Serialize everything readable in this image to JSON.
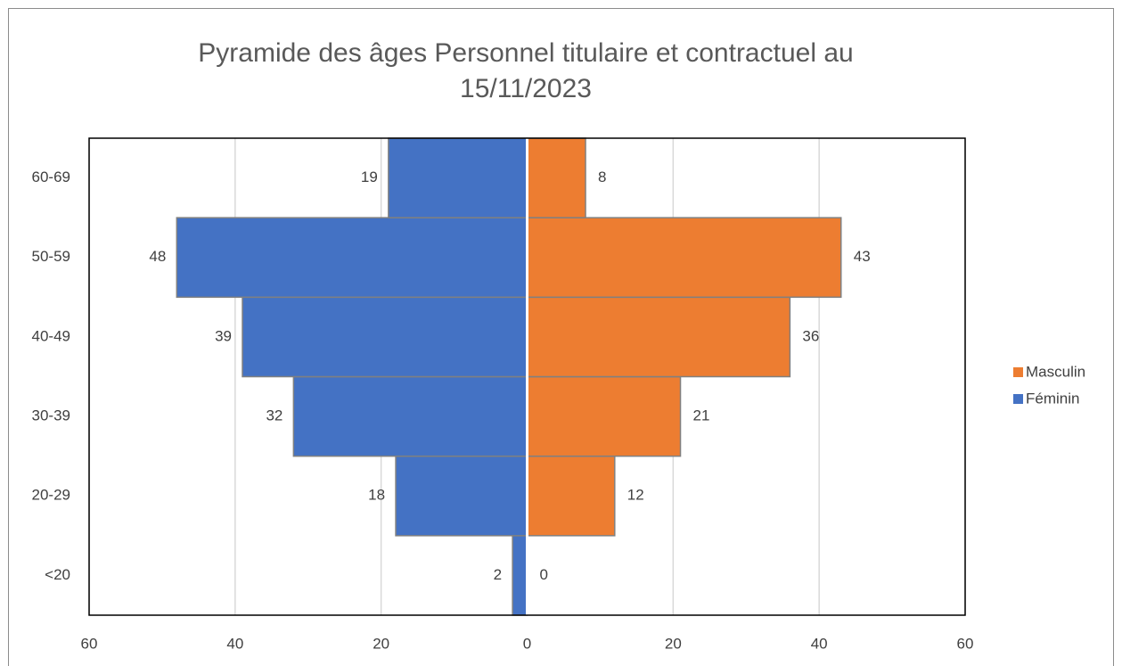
{
  "chart_data": {
    "type": "pyramid",
    "title": "Pyramide des âges Personnel titulaire et contractuel au 15/11/2023",
    "categories": [
      "<20",
      "20-29",
      "30-39",
      "40-49",
      "50-59",
      "60-69"
    ],
    "series": [
      {
        "name": "Masculin",
        "color": "#ed7d31",
        "values": [
          0,
          12,
          21,
          36,
          43,
          8
        ]
      },
      {
        "name": "Féminin",
        "color": "#4472c4",
        "values": [
          -2,
          -18,
          -32,
          -39,
          -48,
          -19
        ],
        "value_labels": [
          "2",
          "18",
          "32",
          "39",
          "48",
          "19"
        ]
      }
    ],
    "xlim": [
      -60,
      60
    ],
    "xticks": [
      {
        "value": -60,
        "label": "60"
      },
      {
        "value": -40,
        "label": "40"
      },
      {
        "value": -20,
        "label": "20"
      },
      0,
      20,
      40,
      60
    ],
    "grid": true,
    "legend": "right"
  }
}
